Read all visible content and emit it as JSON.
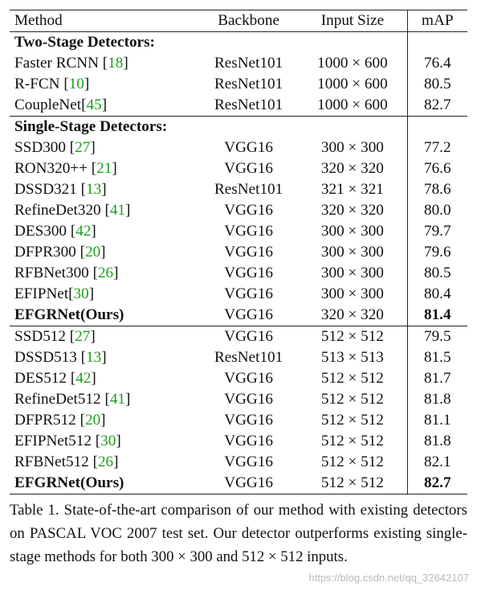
{
  "table": {
    "headers": [
      "Method",
      "Backbone",
      "Input Size",
      "mAP"
    ],
    "sections": [
      {
        "title": "Two-Stage Detectors:",
        "rows": [
          {
            "method": "Faster RCNN",
            "ref": "18",
            "sep": " ",
            "backbone": "ResNet101",
            "input": "1000 × 600",
            "map": "76.4",
            "bold": false
          },
          {
            "method": "R-FCN",
            "ref": "10",
            "sep": " ",
            "backbone": "ResNet101",
            "input": "1000 × 600",
            "map": "80.5",
            "bold": false
          },
          {
            "method": "CoupleNet",
            "ref": "45",
            "sep": "",
            "backbone": "ResNet101",
            "input": "1000 × 600",
            "map": "82.7",
            "bold": false
          }
        ]
      },
      {
        "title": "Single-Stage Detectors:",
        "rows": [
          {
            "method": "SSD300",
            "ref": "27",
            "sep": " ",
            "backbone": "VGG16",
            "input": "300 × 300",
            "map": "77.2",
            "bold": false
          },
          {
            "method": "RON320++",
            "ref": "21",
            "sep": " ",
            "backbone": "VGG16",
            "input": "320 × 320",
            "map": "76.6",
            "bold": false
          },
          {
            "method": "DSSD321",
            "ref": "13",
            "sep": " ",
            "backbone": "ResNet101",
            "input": "321 × 321",
            "map": "78.6",
            "bold": false
          },
          {
            "method": "RefineDet320",
            "ref": "41",
            "sep": " ",
            "backbone": "VGG16",
            "input": "320 × 320",
            "map": "80.0",
            "bold": false
          },
          {
            "method": "DES300",
            "ref": "42",
            "sep": " ",
            "backbone": "VGG16",
            "input": "300 × 300",
            "map": "79.7",
            "bold": false
          },
          {
            "method": "DFPR300",
            "ref": "20",
            "sep": " ",
            "backbone": "VGG16",
            "input": "300 × 300",
            "map": "79.6",
            "bold": false
          },
          {
            "method": "RFBNet300",
            "ref": "26",
            "sep": " ",
            "backbone": "VGG16",
            "input": "300 × 300",
            "map": "80.5",
            "bold": false
          },
          {
            "method": "EFIPNet",
            "ref": "30",
            "sep": "",
            "backbone": "VGG16",
            "input": "300 × 300",
            "map": "80.4",
            "bold": false
          },
          {
            "method": "EFGRNet(Ours)",
            "ref": "",
            "sep": "",
            "backbone": "VGG16",
            "input": "320 × 320",
            "map": "81.4",
            "bold": true
          }
        ]
      },
      {
        "title": "",
        "rows": [
          {
            "method": "SSD512",
            "ref": "27",
            "sep": " ",
            "backbone": "VGG16",
            "input": "512 × 512",
            "map": "79.5",
            "bold": false
          },
          {
            "method": "DSSD513",
            "ref": "13",
            "sep": " ",
            "backbone": "ResNet101",
            "input": "513 × 513",
            "map": "81.5",
            "bold": false
          },
          {
            "method": "DES512",
            "ref": "42",
            "sep": " ",
            "backbone": "VGG16",
            "input": "512 × 512",
            "map": "81.7",
            "bold": false
          },
          {
            "method": "RefineDet512",
            "ref": "41",
            "sep": " ",
            "backbone": "VGG16",
            "input": "512 × 512",
            "map": "81.8",
            "bold": false
          },
          {
            "method": "DFPR512",
            "ref": "20",
            "sep": " ",
            "backbone": "VGG16",
            "input": "512 × 512",
            "map": "81.1",
            "bold": false
          },
          {
            "method": "EFIPNet512",
            "ref": "30",
            "sep": " ",
            "backbone": "VGG16",
            "input": "512 × 512",
            "map": "81.8",
            "bold": false
          },
          {
            "method": "RFBNet512",
            "ref": "26",
            "sep": " ",
            "backbone": "VGG16",
            "input": "512 × 512",
            "map": "82.1",
            "bold": false
          },
          {
            "method": "EFGRNet(Ours)",
            "ref": "",
            "sep": "",
            "backbone": "VGG16",
            "input": "512 × 512",
            "map": "82.7",
            "bold": true
          }
        ]
      }
    ]
  },
  "caption": "Table 1. State-of-the-art comparison of our method with existing detectors on PASCAL VOC 2007 test set. Our detector outperforms existing single-stage methods for both 300 × 300 and 512 × 512 inputs.",
  "watermark": "https://blog.csdn.net/qq_32642107",
  "colors": {
    "citation": "#19a019",
    "text": "#111111",
    "watermark": "#b9b9b9"
  }
}
